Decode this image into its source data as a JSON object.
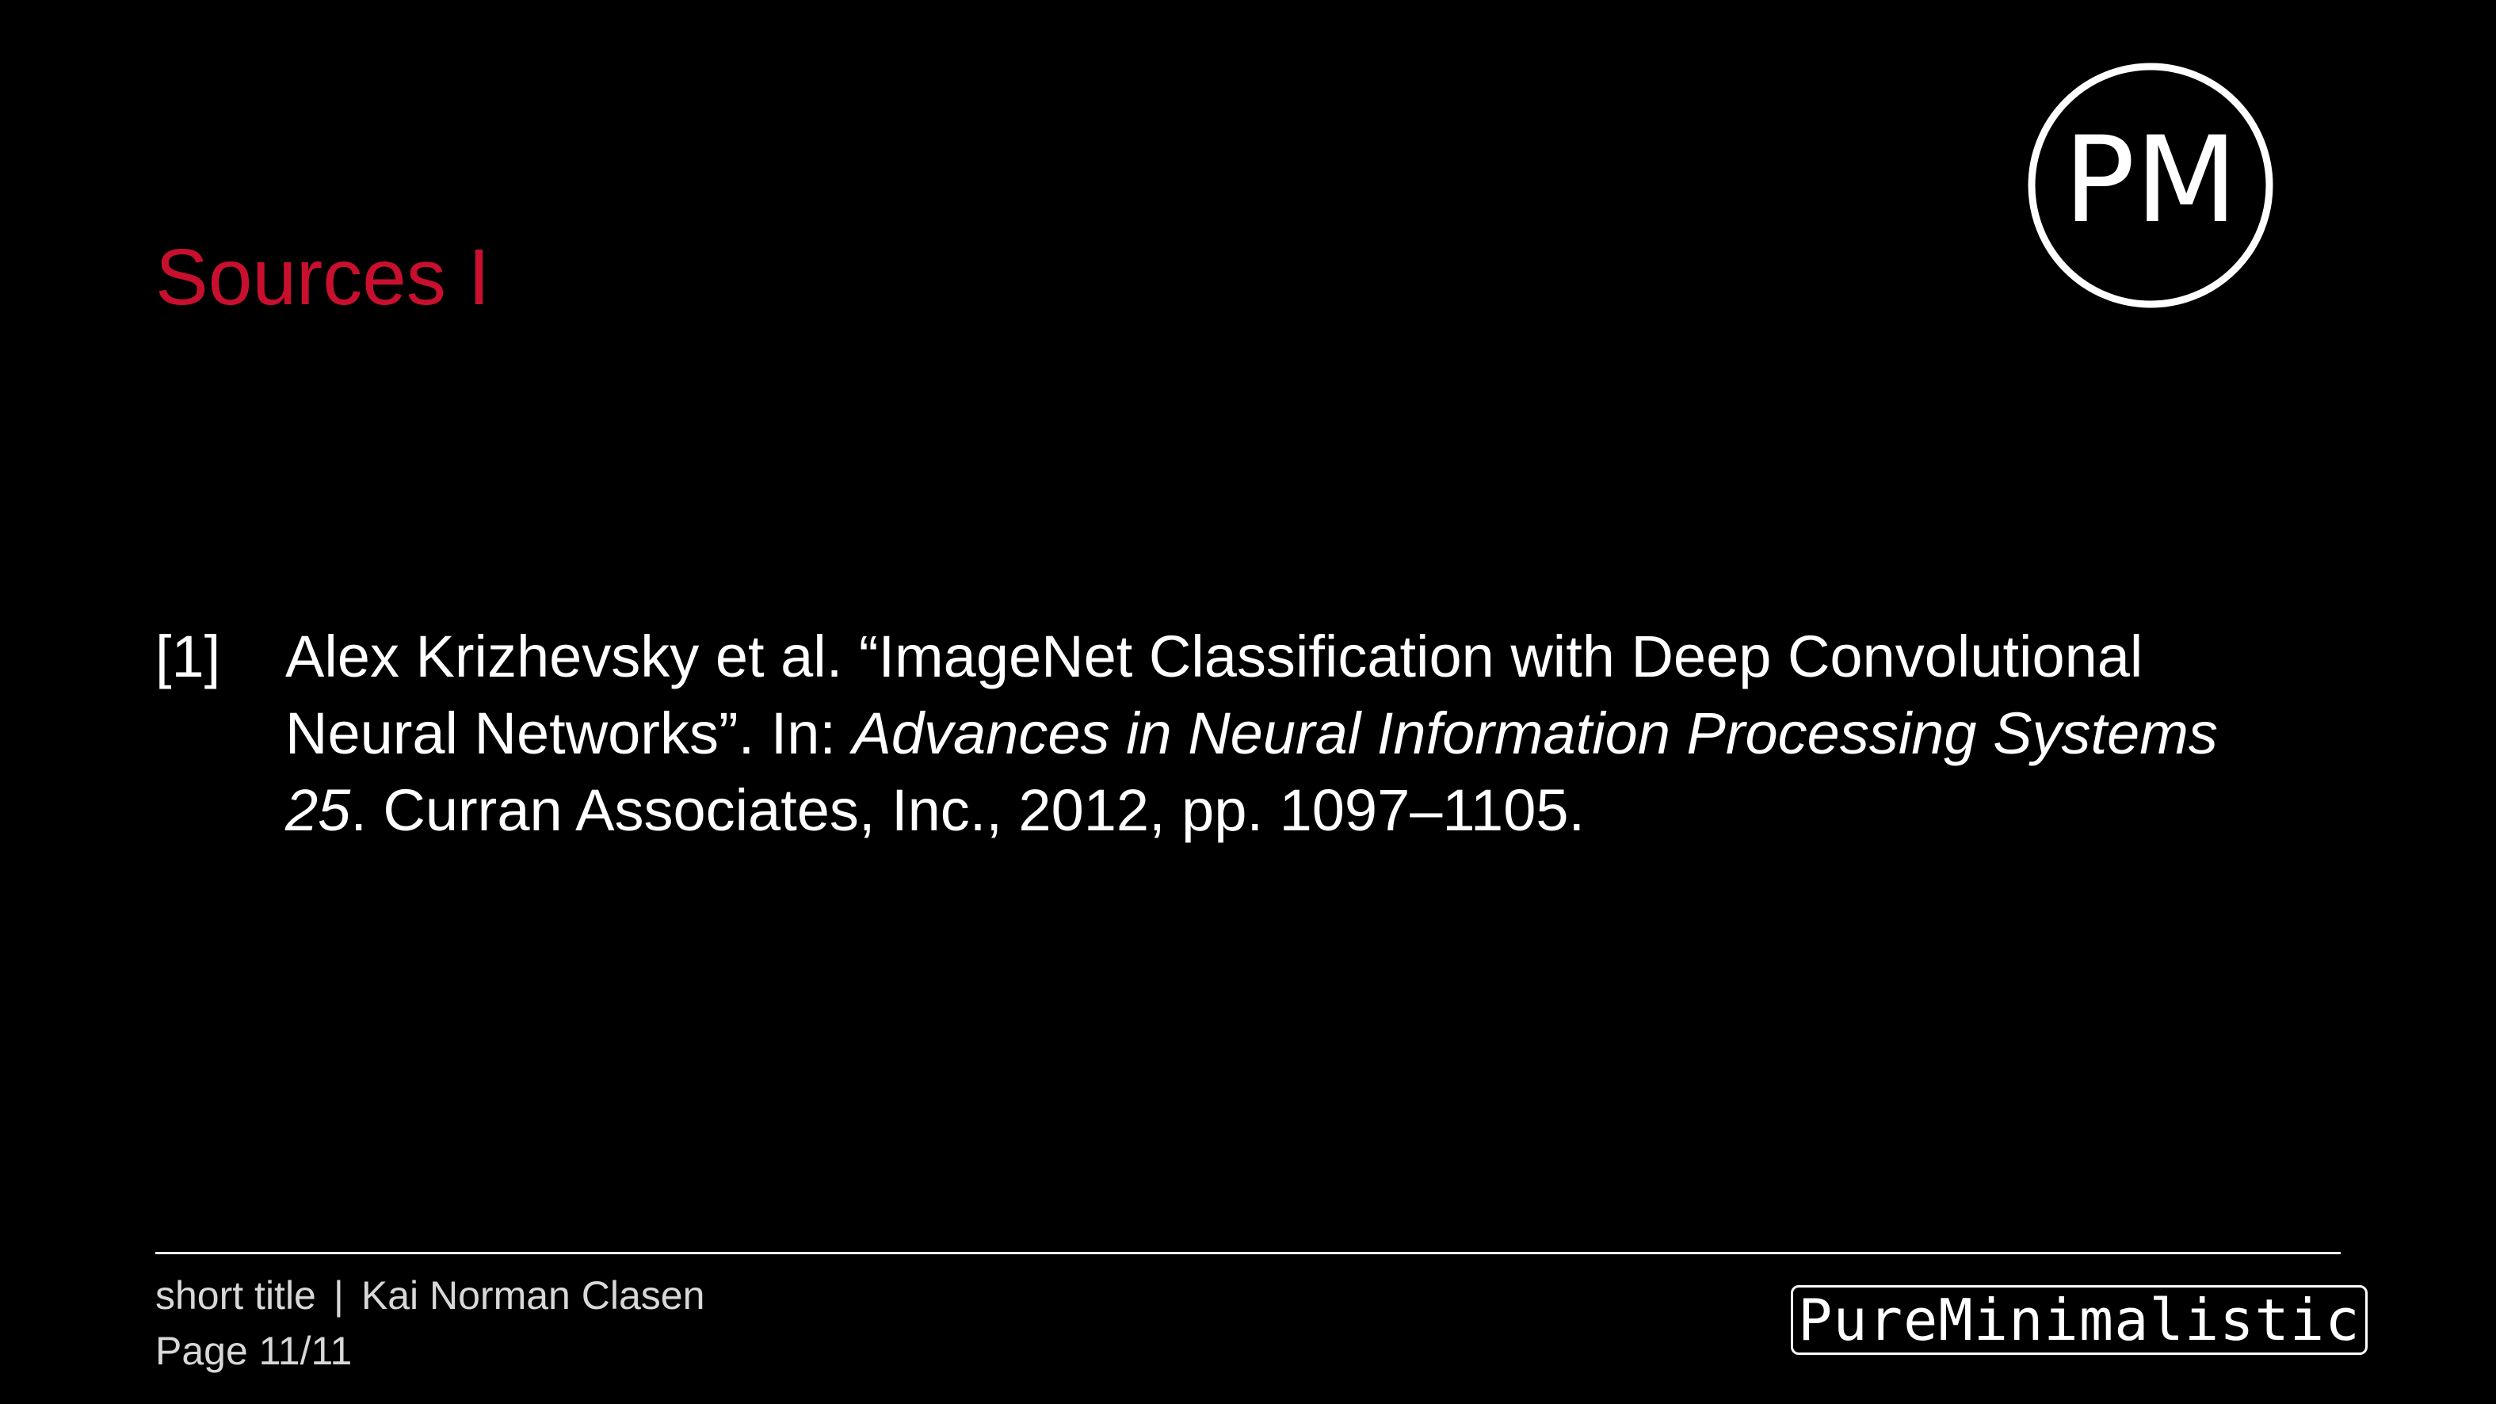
{
  "slide": {
    "title": "Sources I",
    "logo_text": "PM",
    "accent_color": "#c8102e",
    "background_color": "#000000"
  },
  "references": [
    {
      "label": "[1]",
      "line1": "Alex Krizhevsky et al. “ImageNet Classification with Deep Convolutional",
      "line2_plain": "Neural Networks”. In: ",
      "line2_italic": "Advances in Neural Information Processing Systems",
      "line3_italic": "25",
      "line3_plain": ". Curran Associates, Inc., 2012, pp. 1097–1105."
    }
  ],
  "footer": {
    "short_title": "short title",
    "separator": "|",
    "author": "Kai Norman Clasen",
    "page": "Page 11/11",
    "brand": "PureMinimalistic"
  }
}
